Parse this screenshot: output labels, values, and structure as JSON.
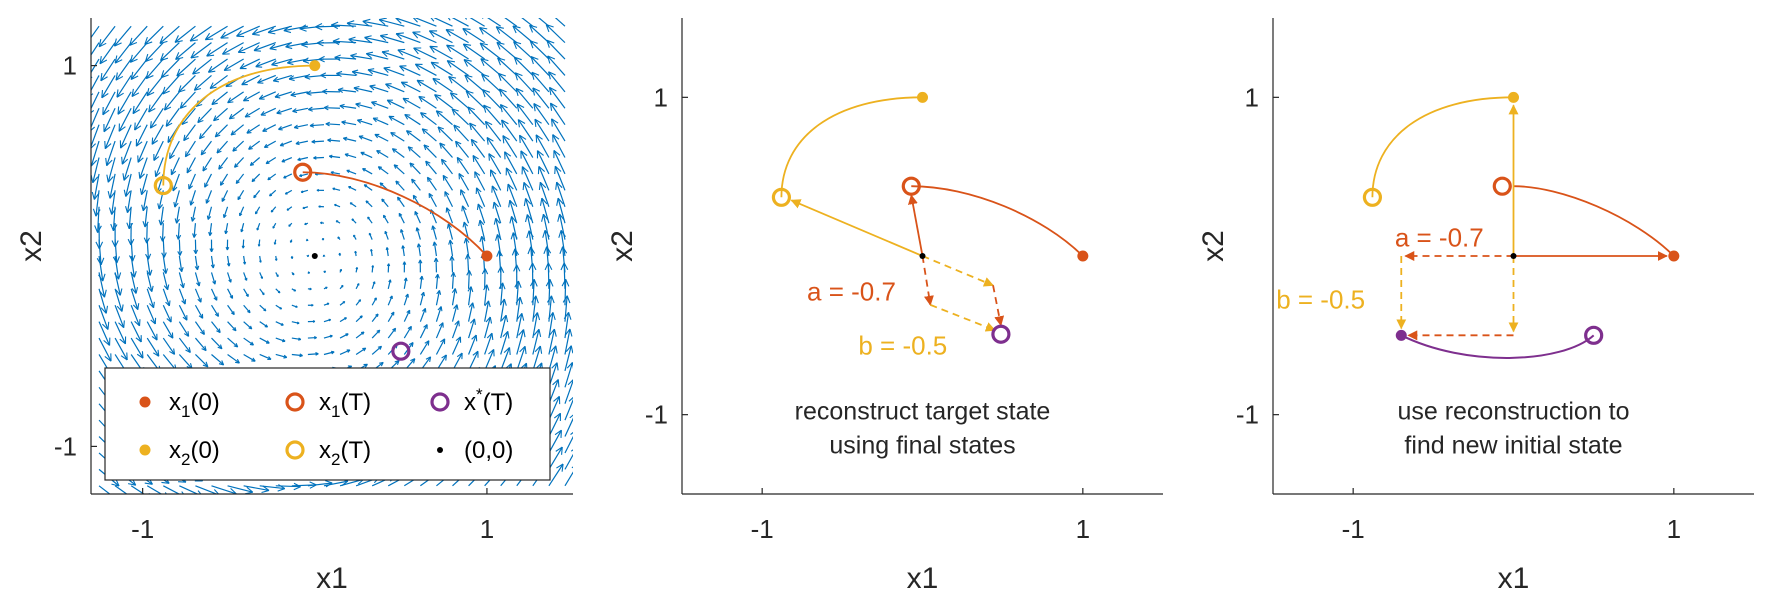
{
  "colors": {
    "orange": "#D95319",
    "yellow": "#EDB120",
    "purple": "#7E2F8E",
    "quiver": "#0072BD",
    "axis": "#262626"
  },
  "chart_data": [
    {
      "type": "scatter",
      "panel": "vector-field",
      "xlabel": "x1",
      "ylabel": "x2",
      "xlim": [
        -1.3,
        1.5
      ],
      "ylim": [
        -1.25,
        1.25
      ],
      "xticks": [
        {
          "v": -1,
          "label": "-1"
        },
        {
          "v": 1,
          "label": "1"
        }
      ],
      "yticks": [
        {
          "v": -1,
          "label": "-1"
        },
        {
          "v": 1,
          "label": "1"
        }
      ],
      "caption": [],
      "vector_field": "rotational-flow",
      "points": {
        "x1_0": [
          1.0,
          0.0
        ],
        "x2_0": [
          0.0,
          1.0
        ],
        "x1_T": [
          -0.07,
          0.44
        ],
        "x2_T": [
          -0.88,
          0.37
        ],
        "xstar_T": [
          0.5,
          -0.5
        ],
        "origin": [
          0.0,
          0.0
        ]
      },
      "trajectories": [
        {
          "series": "x1",
          "points": [
            [
              1.0,
              0.0
            ],
            [
              0.7,
              0.3
            ],
            [
              0.3,
              0.44
            ],
            [
              -0.07,
              0.44
            ]
          ]
        },
        {
          "series": "x2",
          "points": [
            [
              0.0,
              1.0
            ],
            [
              -0.5,
              1.0
            ],
            [
              -0.88,
              0.75
            ],
            [
              -0.88,
              0.37
            ]
          ]
        }
      ],
      "legend": {
        "placement": "bottom-left",
        "entries": [
          {
            "key": "x1_0",
            "base": "x",
            "sub": "1",
            "sup": "",
            "tail": "(0)",
            "marker": "dot",
            "color": "#D95319"
          },
          {
            "key": "x1_T",
            "base": "x",
            "sub": "1",
            "sup": "",
            "tail": "(T)",
            "marker": "ring",
            "color": "#D95319"
          },
          {
            "key": "xstar_T",
            "base": "x",
            "sub": "",
            "sup": "*",
            "tail": "(T)",
            "marker": "ring",
            "color": "#7E2F8E"
          },
          {
            "key": "x2_0",
            "base": "x",
            "sub": "2",
            "sup": "",
            "tail": "(0)",
            "marker": "dot",
            "color": "#EDB120"
          },
          {
            "key": "x2_T",
            "base": "x",
            "sub": "2",
            "sup": "",
            "tail": "(T)",
            "marker": "ring",
            "color": "#EDB120"
          },
          {
            "key": "origin",
            "base": "(0,0)",
            "sub": "",
            "sup": "",
            "tail": "",
            "marker": "smalldot",
            "color": "#000000"
          }
        ]
      }
    },
    {
      "type": "scatter",
      "panel": "reconstruct",
      "xlabel": "x1",
      "ylabel": "x2",
      "xlim": [
        -1.5,
        1.5
      ],
      "ylim": [
        -1.5,
        1.5
      ],
      "xticks": [
        {
          "v": -1,
          "label": "-1"
        },
        {
          "v": 1,
          "label": "1"
        }
      ],
      "yticks": [
        {
          "v": -1,
          "label": "-1"
        },
        {
          "v": 1,
          "label": "1"
        }
      ],
      "caption": [
        "reconstruct target state",
        "using final states"
      ],
      "a_label": "a = -0.7",
      "b_label": "b = -0.5",
      "a": -0.7,
      "b": -0.5
    },
    {
      "type": "scatter",
      "panel": "new-initial",
      "xlabel": "x1",
      "ylabel": "x2",
      "xlim": [
        -1.5,
        1.5
      ],
      "ylim": [
        -1.5,
        1.5
      ],
      "xticks": [
        {
          "v": -1,
          "label": "-1"
        },
        {
          "v": 1,
          "label": "1"
        }
      ],
      "yticks": [
        {
          "v": -1,
          "label": "-1"
        },
        {
          "v": 1,
          "label": "1"
        }
      ],
      "caption": [
        "use reconstruction to",
        "find new initial state"
      ],
      "a_label": "a = -0.7",
      "b_label": "b = -0.5",
      "a": -0.7,
      "b": -0.5,
      "new_initial": [
        -0.7,
        -0.5
      ]
    }
  ]
}
